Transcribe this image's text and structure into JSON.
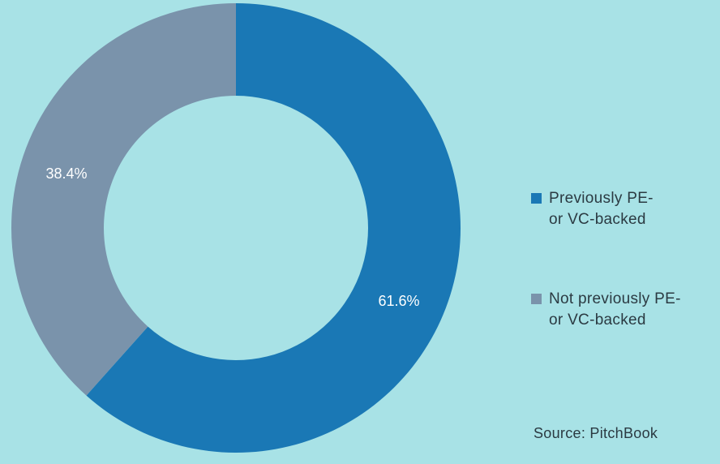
{
  "chart_data": {
    "type": "pie",
    "subtype": "donut",
    "categories": [
      "Previously PE- or VC-backed",
      "Not previously PE- or VC-backed"
    ],
    "values": [
      61.6,
      38.4
    ],
    "labels": [
      "61.6%",
      "38.4%"
    ],
    "colors": [
      "#1a78b5",
      "#7a93ab"
    ],
    "legend_position": "right",
    "start": "top",
    "direction": "clockwise"
  },
  "legend": {
    "items": [
      {
        "line1": "Previously PE-",
        "line2": "or VC-backed",
        "color": "#1a78b5"
      },
      {
        "line1": "Not previously PE-",
        "line2": "or VC-backed",
        "color": "#7a93ab"
      }
    ]
  },
  "source": "Source: PitchBook"
}
